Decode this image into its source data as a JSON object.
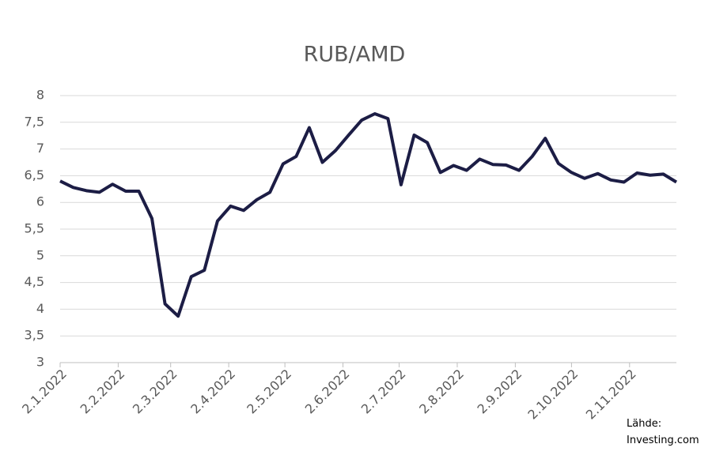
{
  "chart_data": {
    "type": "line",
    "title": "RUB/AMD",
    "x": [
      "2.1.2022",
      "9.1.2022",
      "16.1.2022",
      "23.1.2022",
      "30.1.2022",
      "6.2.2022",
      "13.2.2022",
      "20.2.2022",
      "27.2.2022",
      "6.3.2022",
      "13.3.2022",
      "20.3.2022",
      "27.3.2022",
      "3.4.2022",
      "10.4.2022",
      "17.4.2022",
      "24.4.2022",
      "1.5.2022",
      "8.5.2022",
      "15.5.2022",
      "22.5.2022",
      "29.5.2022",
      "5.6.2022",
      "12.6.2022",
      "19.6.2022",
      "26.6.2022",
      "3.7.2022",
      "10.7.2022",
      "17.7.2022",
      "24.7.2022",
      "31.7.2022",
      "7.8.2022",
      "14.8.2022",
      "21.8.2022",
      "28.8.2022",
      "4.9.2022",
      "11.9.2022",
      "18.9.2022",
      "25.9.2022",
      "2.10.2022",
      "9.10.2022",
      "16.10.2022",
      "23.10.2022",
      "30.10.2022",
      "6.11.2022",
      "13.11.2022",
      "20.11.2022",
      "27.11.2022"
    ],
    "series": [
      {
        "name": "RUB/AMD",
        "color": "#1c1d45",
        "values": [
          6.4,
          6.28,
          6.22,
          6.19,
          6.34,
          6.21,
          6.21,
          5.7,
          4.1,
          3.87,
          4.61,
          4.73,
          5.65,
          5.93,
          5.85,
          6.05,
          6.19,
          6.72,
          6.86,
          7.4,
          6.75,
          6.97,
          7.26,
          7.54,
          7.66,
          7.57,
          6.33,
          7.26,
          7.12,
          6.56,
          6.69,
          6.6,
          6.81,
          6.71,
          6.7,
          6.6,
          6.86,
          7.2,
          6.73,
          6.56,
          6.45,
          6.54,
          6.42,
          6.38,
          6.55,
          6.51,
          6.53,
          6.38
        ]
      }
    ],
    "xlim": [
      "2.1.2022",
      "27.11.2022"
    ],
    "xticks": [
      "2.1.2022",
      "2.2.2022",
      "2.3.2022",
      "2.4.2022",
      "2.5.2022",
      "2.6.2022",
      "2.7.2022",
      "2.8.2022",
      "2.9.2022",
      "2.10.2022",
      "2.11.2022"
    ],
    "ylim": [
      3,
      8
    ],
    "yticks": [
      3,
      {
        "value": 3.5,
        "label": "3,5"
      },
      4,
      {
        "value": 4.5,
        "label": "4,5"
      },
      5,
      {
        "value": 5.5,
        "label": "5,5"
      },
      6,
      {
        "value": 6.5,
        "label": "6,5"
      },
      7,
      {
        "value": 7.5,
        "label": "7,5"
      },
      8
    ],
    "grid": true,
    "source_label": "Lähde:",
    "source": "Investing.com"
  }
}
